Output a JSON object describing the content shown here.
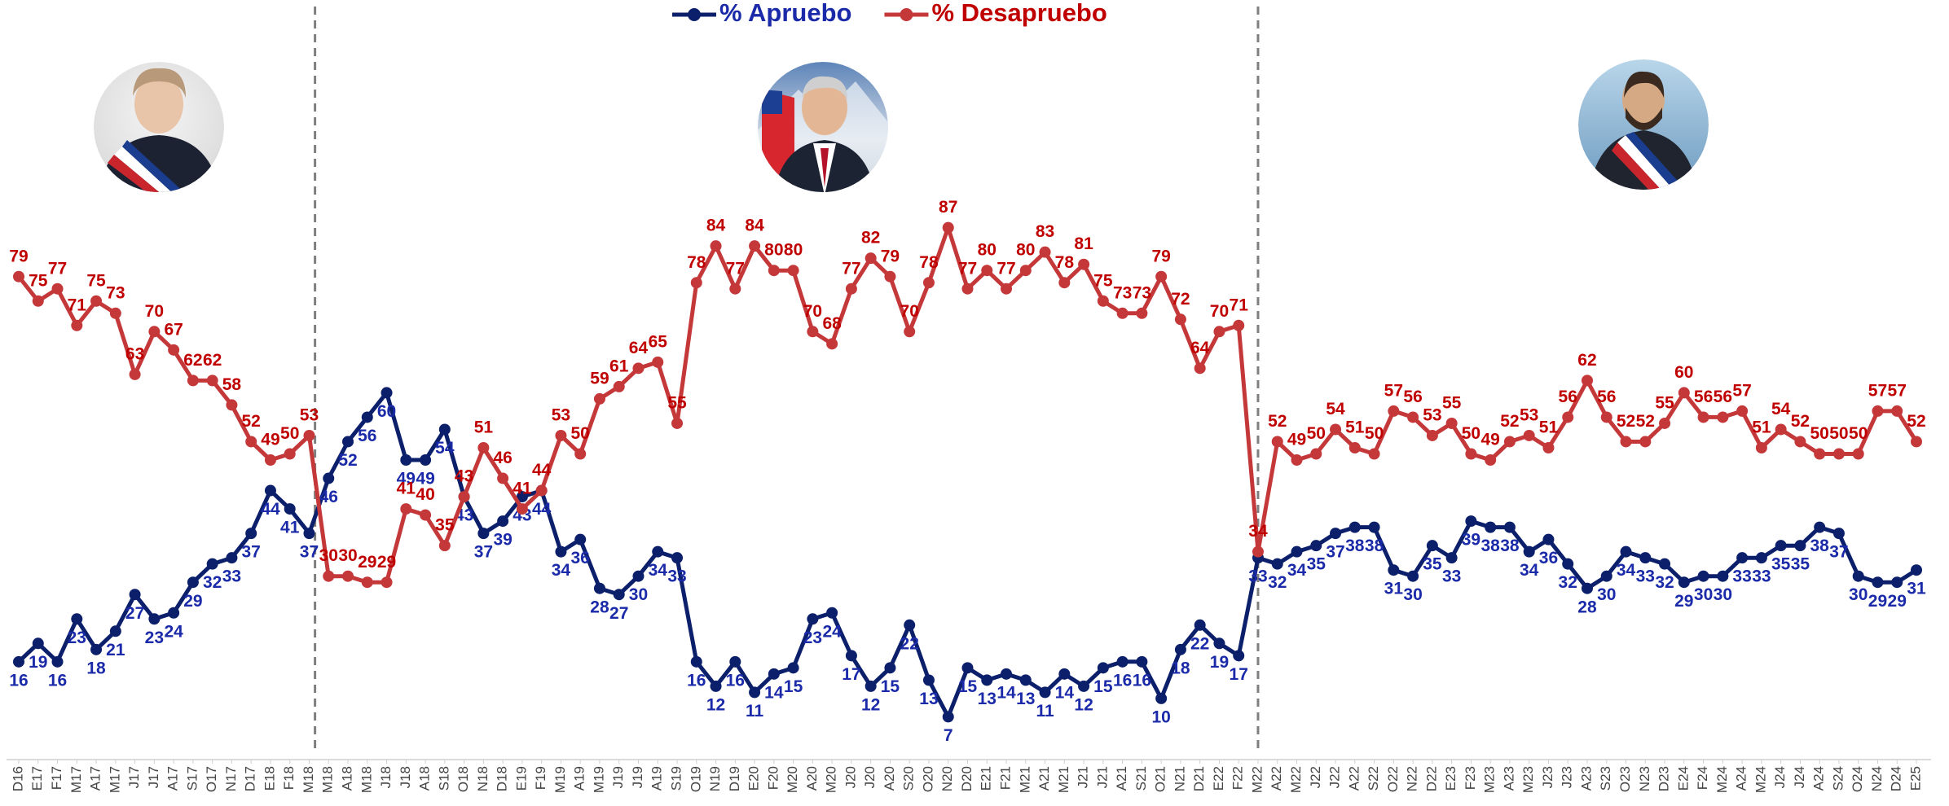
{
  "chart_data": {
    "type": "line",
    "legend": "top",
    "ylim": [
      0,
      100
    ],
    "categories": [
      "D16",
      "E17",
      "F17",
      "M17",
      "A17",
      "M17",
      "J17",
      "J17",
      "A17",
      "S17",
      "O17",
      "N17",
      "D17",
      "E18",
      "F18",
      "M18",
      "M18",
      "A18",
      "M18",
      "J18",
      "J18",
      "A18",
      "S18",
      "O18",
      "N18",
      "D18",
      "E19",
      "F19",
      "M19",
      "A19",
      "M19",
      "J19",
      "J19",
      "A19",
      "S19",
      "O19",
      "N19",
      "D19",
      "E20",
      "F20",
      "M20",
      "A20",
      "M20",
      "J20",
      "J20",
      "A20",
      "S20",
      "O20",
      "N20",
      "D20",
      "E21",
      "F21",
      "M21",
      "A21",
      "M21",
      "J21",
      "J21",
      "A21",
      "S21",
      "O21",
      "N21",
      "D21",
      "E22",
      "F22",
      "M22",
      "A22",
      "M22",
      "J22",
      "J22",
      "A22",
      "S22",
      "O22",
      "N22",
      "D22",
      "E23",
      "F23",
      "M23",
      "A23",
      "M23",
      "J23",
      "J23",
      "A23",
      "S23",
      "O23",
      "N23",
      "D23",
      "E24",
      "F24",
      "M24",
      "A24",
      "M24",
      "J24",
      "J24",
      "A24",
      "S24",
      "O24",
      "N24",
      "D24",
      "E25"
    ],
    "series": [
      {
        "name": "% Apruebo",
        "color": "#0b1f6b",
        "label_color": "#1a2aa8",
        "values": [
          16,
          19,
          16,
          23,
          18,
          21,
          27,
          23,
          24,
          29,
          32,
          33,
          37,
          44,
          41,
          37,
          46,
          52,
          56,
          60,
          49,
          49,
          54,
          43,
          37,
          39,
          43,
          44,
          34,
          36,
          28,
          27,
          30,
          34,
          33,
          16,
          12,
          16,
          11,
          14,
          15,
          23,
          24,
          17,
          12,
          15,
          22,
          13,
          7,
          15,
          13,
          14,
          13,
          11,
          14,
          12,
          15,
          16,
          16,
          10,
          18,
          22,
          19,
          17,
          33,
          32,
          34,
          35,
          37,
          38,
          38,
          31,
          30,
          35,
          33,
          39,
          38,
          38,
          34,
          36,
          32,
          28,
          30,
          34,
          33,
          32,
          29,
          30,
          30,
          33,
          33,
          35,
          35,
          38,
          37,
          30,
          29,
          29,
          31
        ]
      },
      {
        "name": "% Desapruebo",
        "color": "#c5383a",
        "label_color": "#c00000",
        "values": [
          79,
          75,
          77,
          71,
          75,
          73,
          63,
          70,
          67,
          62,
          62,
          58,
          52,
          49,
          50,
          53,
          30,
          30,
          29,
          29,
          41,
          40,
          35,
          43,
          51,
          46,
          41,
          44,
          53,
          50,
          59,
          61,
          64,
          65,
          55,
          78,
          84,
          77,
          84,
          80,
          80,
          70,
          68,
          77,
          82,
          79,
          70,
          78,
          87,
          77,
          80,
          77,
          80,
          83,
          78,
          81,
          75,
          73,
          73,
          79,
          72,
          64,
          70,
          71,
          34,
          52,
          49,
          50,
          54,
          51,
          50,
          57,
          56,
          53,
          55,
          50,
          49,
          52,
          53,
          51,
          56,
          62,
          56,
          52,
          52,
          55,
          60,
          56,
          56,
          57,
          51,
          54,
          52,
          50,
          50,
          50,
          57,
          57,
          52
        ]
      }
    ]
  }
}
